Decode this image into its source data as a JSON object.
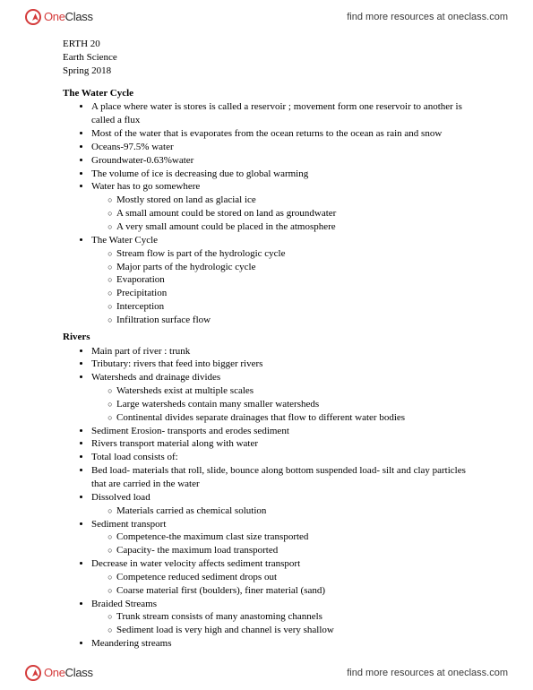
{
  "brand": {
    "one": "One",
    "class": "Class",
    "tagline": "find more resources at oneclass.com"
  },
  "course": {
    "code": "ERTH 20",
    "name": "Earth Science",
    "term": "Spring 2018"
  },
  "sec1": {
    "title": "The Water Cycle",
    "b1": "A place where water is stores is called a reservoir ; movement form one reservoir to another is called a flux",
    "b2": "Most of the water that is evaporates from the ocean returns to the ocean as rain and snow",
    "b3": "Oceans-97.5% water",
    "b4": "Groundwater-0.63%water",
    "b5": "The volume of ice is decreasing due to global warming",
    "b6": "Water has to go somewhere",
    "b6a": "Mostly stored on land as glacial ice",
    "b6b": "A small amount could be stored on land as groundwater",
    "b6c": "A very small amount could be placed in the atmosphere",
    "b7": "The Water Cycle",
    "b7a": "Stream flow is part of the hydrologic cycle",
    "b7b": "Major parts of the hydrologic cycle",
    "b7c": "Evaporation",
    "b7d": "Precipitation",
    "b7e": "Interception",
    "b7f": "Infiltration surface flow"
  },
  "sec2": {
    "title": "Rivers",
    "b1": "Main part of river : trunk",
    "b2": "Tributary: rivers that feed into bigger rivers",
    "b3": "Watersheds and drainage divides",
    "b3a": "Watersheds exist at multiple scales",
    "b3b": "Large watersheds contain many smaller watersheds",
    "b3c": "Continental divides separate drainages that flow to different water bodies",
    "b4": "Sediment Erosion- transports and erodes sediment",
    "b5": "Rivers transport material along with water",
    "b6": "Total load consists of:",
    "b7": "Bed load- materials that roll, slide, bounce along bottom suspended load- silt and clay particles that are carried in the water",
    "b8": "Dissolved load",
    "b8a": "Materials carried as chemical solution",
    "b9": "Sediment transport",
    "b9a": "Competence-the maximum clast size transported",
    "b9b": "Capacity- the maximum load transported",
    "b10": "Decrease in water velocity affects sediment transport",
    "b10a": "Competence reduced sediment drops out",
    "b10b": "Coarse material first (boulders), finer material (sand)",
    "b11": "Braided Streams",
    "b11a": "Trunk stream consists of many anastoming channels",
    "b11b": "Sediment load is very high and channel is very shallow",
    "b12": "Meandering streams"
  }
}
